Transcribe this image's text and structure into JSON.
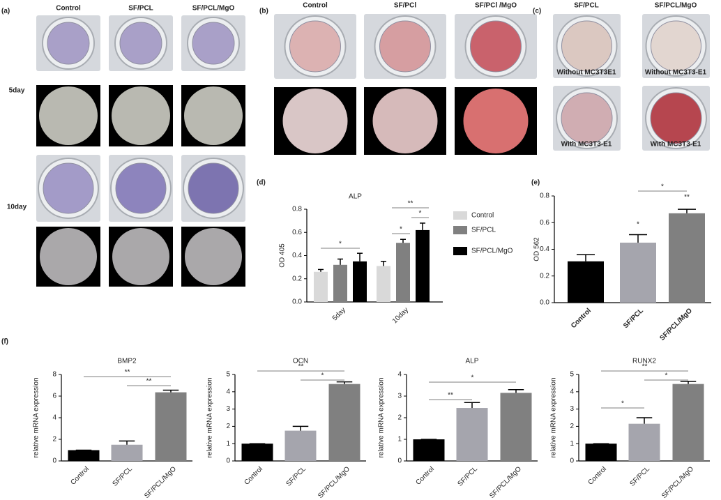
{
  "panels": {
    "a": {
      "label": "(a)",
      "columns": [
        "Control",
        "SF/PCL",
        "SF/PCL/MgO"
      ],
      "rows": [
        "5day",
        "10day"
      ]
    },
    "b": {
      "label": "(b)",
      "columns": [
        "Control",
        "SF/PCl",
        "SF/PCl /MgO"
      ]
    },
    "c": {
      "label": "(c)",
      "columns": [
        "SF/PCL",
        "SF/PCL/MgO"
      ],
      "captions": [
        "Without MC3T3E1",
        "Without MC3T3-E1",
        "With MC3T3-E1",
        "With MC3T3-E1"
      ]
    },
    "d": {
      "label": "(d)"
    },
    "e": {
      "label": "(e)"
    },
    "f": {
      "label": "(f)"
    }
  },
  "chart_data": [
    {
      "type": "grouped-bar",
      "title": "ALP",
      "y_label": "OD 405",
      "categories": [
        "5day",
        "10day"
      ],
      "series": [
        {
          "name": "Control",
          "color": "#d9d9d9",
          "values": [
            0.26,
            0.31
          ],
          "errors": [
            0.02,
            0.04
          ]
        },
        {
          "name": "SF/PCL",
          "color": "#808080",
          "values": [
            0.32,
            0.51
          ],
          "errors": [
            0.05,
            0.03
          ]
        },
        {
          "name": "SF/PCL/MgO",
          "color": "#000000",
          "values": [
            0.35,
            0.62
          ],
          "errors": [
            0.07,
            0.06
          ]
        }
      ],
      "ylim": [
        0,
        0.8
      ],
      "yticks": [
        {
          "value": 0,
          "label": "0.0"
        },
        0.2,
        0.4,
        0.6,
        0.8
      ],
      "annotations": [
        "*",
        "**",
        "*",
        "*"
      ]
    },
    {
      "type": "bar",
      "y_label": "OD 562",
      "categories": [
        "Control",
        "SF/PCL",
        "SF/PCL/MgO"
      ],
      "values": [
        0.31,
        0.45,
        0.67
      ],
      "errors": [
        0.05,
        0.06,
        0.03
      ],
      "colors": [
        "#000000",
        "#a5a5ad",
        "#808080"
      ],
      "ylim": [
        0,
        0.8
      ],
      "yticks": [
        {
          "value": 0,
          "label": "0.0"
        },
        0.2,
        0.4,
        0.6,
        0.8
      ],
      "annotations": [
        "*",
        "**",
        "*"
      ]
    },
    {
      "type": "bar",
      "title": "BMP2",
      "y_label": "relative mRNA expression",
      "categories": [
        "Control",
        "SF/PCL",
        "SF/PCL/MgO"
      ],
      "values": [
        1,
        1.5,
        6.35
      ],
      "errors": [
        0,
        0.35,
        0.2
      ],
      "colors": [
        "#000000",
        "#a5a5ad",
        "#808080"
      ],
      "ylim": [
        0,
        8
      ],
      "yticks": [
        0,
        2,
        4,
        6,
        8
      ],
      "annotations": [
        "**",
        "**"
      ]
    },
    {
      "type": "bar",
      "title": "OCN",
      "y_label": "relative mRNA expression",
      "categories": [
        "Control",
        "SF/PCL",
        "SF/PCL/MgO"
      ],
      "values": [
        1,
        1.75,
        4.45
      ],
      "errors": [
        0,
        0.25,
        0.12
      ],
      "colors": [
        "#000000",
        "#a5a5ad",
        "#808080"
      ],
      "ylim": [
        0,
        5
      ],
      "yticks": [
        0,
        1,
        2,
        3,
        4,
        5
      ],
      "annotations": [
        "**",
        "*"
      ]
    },
    {
      "type": "bar",
      "title": "ALP",
      "y_label": "relative mRNA expression",
      "categories": [
        "Control",
        "SF/PCL",
        "SF/PCL/MgO"
      ],
      "values": [
        1,
        2.45,
        3.15
      ],
      "errors": [
        0,
        0.25,
        0.15
      ],
      "colors": [
        "#000000",
        "#a5a5ad",
        "#808080"
      ],
      "ylim": [
        0,
        4
      ],
      "yticks": [
        0,
        1,
        2,
        3,
        4
      ],
      "annotations": [
        "*",
        "**"
      ]
    },
    {
      "type": "bar",
      "title": "RUNX2",
      "y_label": "relative mRNA expression",
      "categories": [
        "Control",
        "SF/PCL",
        "SF/PCL/MgO"
      ],
      "values": [
        1,
        2.15,
        4.45
      ],
      "errors": [
        0,
        0.35,
        0.15
      ],
      "colors": [
        "#000000",
        "#a5a5ad",
        "#808080"
      ],
      "ylim": [
        0,
        5
      ],
      "yticks": [
        0,
        1,
        2,
        3,
        4,
        5
      ],
      "annotations": [
        "**",
        "*",
        "*"
      ]
    }
  ]
}
